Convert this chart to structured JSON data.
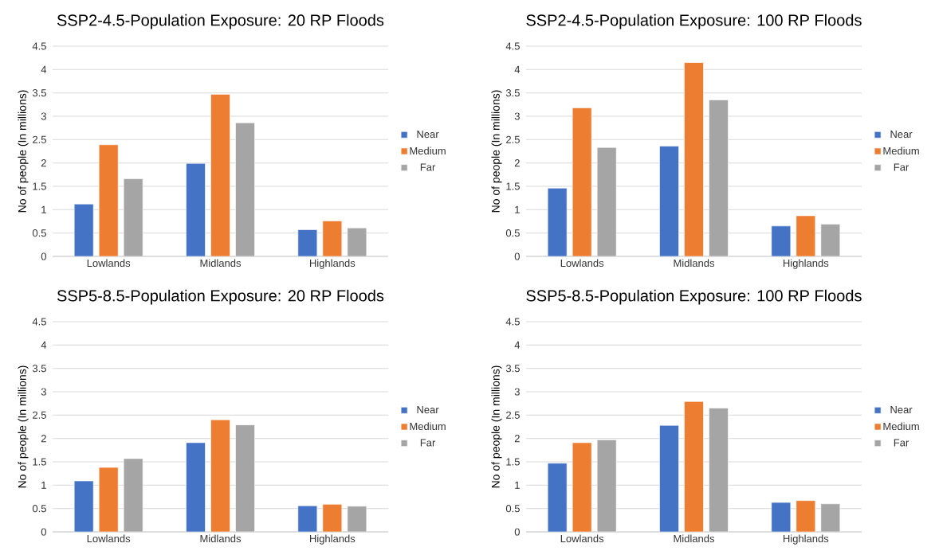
{
  "chart_data": [
    {
      "type": "bar",
      "title": "SSP2-4.5-Population Exposure: 20 RP Floods",
      "ylabel": "No of people (In millions)",
      "categories": [
        "Lowlands",
        "Midlands",
        "Highlands"
      ],
      "series": [
        {
          "name": "Near",
          "color": "#4472c4",
          "values": [
            1.12,
            1.99,
            0.57
          ]
        },
        {
          "name": "Medium",
          "color": "#ed7d31",
          "values": [
            2.39,
            3.47,
            0.76
          ]
        },
        {
          "name": "Far",
          "color": "#a5a5a5",
          "values": [
            1.66,
            2.86,
            0.61
          ]
        }
      ],
      "ylim": [
        0,
        4.5
      ],
      "yticks": [
        0,
        0.5,
        1,
        1.5,
        2,
        2.5,
        3,
        3.5,
        4,
        4.5
      ],
      "grid": "y",
      "legend": "right"
    },
    {
      "type": "bar",
      "title": "SSP2-4.5-Population Exposure: 100 RP Floods",
      "ylabel": "No of people (In millions)",
      "categories": [
        "Lowlands",
        "Midlands",
        "Highlands"
      ],
      "series": [
        {
          "name": "Near",
          "color": "#4472c4",
          "values": [
            1.46,
            2.36,
            0.65
          ]
        },
        {
          "name": "Medium",
          "color": "#ed7d31",
          "values": [
            3.18,
            4.15,
            0.87
          ]
        },
        {
          "name": "Far",
          "color": "#a5a5a5",
          "values": [
            2.33,
            3.35,
            0.69
          ]
        }
      ],
      "ylim": [
        0,
        4.5
      ],
      "yticks": [
        0,
        0.5,
        1,
        1.5,
        2,
        2.5,
        3,
        3.5,
        4,
        4.5
      ],
      "grid": "y",
      "legend": "right"
    },
    {
      "type": "bar",
      "title": "SSP5-8.5-Population Exposure: 20 RP Floods",
      "ylabel": "No of people (In millions)",
      "categories": [
        "Lowlands",
        "Midlands",
        "Highlands"
      ],
      "series": [
        {
          "name": "Near",
          "color": "#4472c4",
          "values": [
            1.09,
            1.91,
            0.56
          ]
        },
        {
          "name": "Medium",
          "color": "#ed7d31",
          "values": [
            1.38,
            2.4,
            0.59
          ]
        },
        {
          "name": "Far",
          "color": "#a5a5a5",
          "values": [
            1.57,
            2.29,
            0.55
          ]
        }
      ],
      "ylim": [
        0,
        4.5
      ],
      "yticks": [
        0,
        0.5,
        1,
        1.5,
        2,
        2.5,
        3,
        3.5,
        4,
        4.5
      ],
      "grid": "y",
      "legend": "right"
    },
    {
      "type": "bar",
      "title": "SSP5-8.5-Population Exposure: 100 RP Floods",
      "ylabel": "No of people (In millions)",
      "categories": [
        "Lowlands",
        "Midlands",
        "Highlands"
      ],
      "series": [
        {
          "name": "Near",
          "color": "#4472c4",
          "values": [
            1.47,
            2.28,
            0.63
          ]
        },
        {
          "name": "Medium",
          "color": "#ed7d31",
          "values": [
            1.91,
            2.79,
            0.67
          ]
        },
        {
          "name": "Far",
          "color": "#a5a5a5",
          "values": [
            1.97,
            2.65,
            0.6
          ]
        }
      ],
      "ylim": [
        0,
        4.5
      ],
      "yticks": [
        0,
        0.5,
        1,
        1.5,
        2,
        2.5,
        3,
        3.5,
        4,
        4.5
      ],
      "grid": "y",
      "legend": "right"
    }
  ]
}
